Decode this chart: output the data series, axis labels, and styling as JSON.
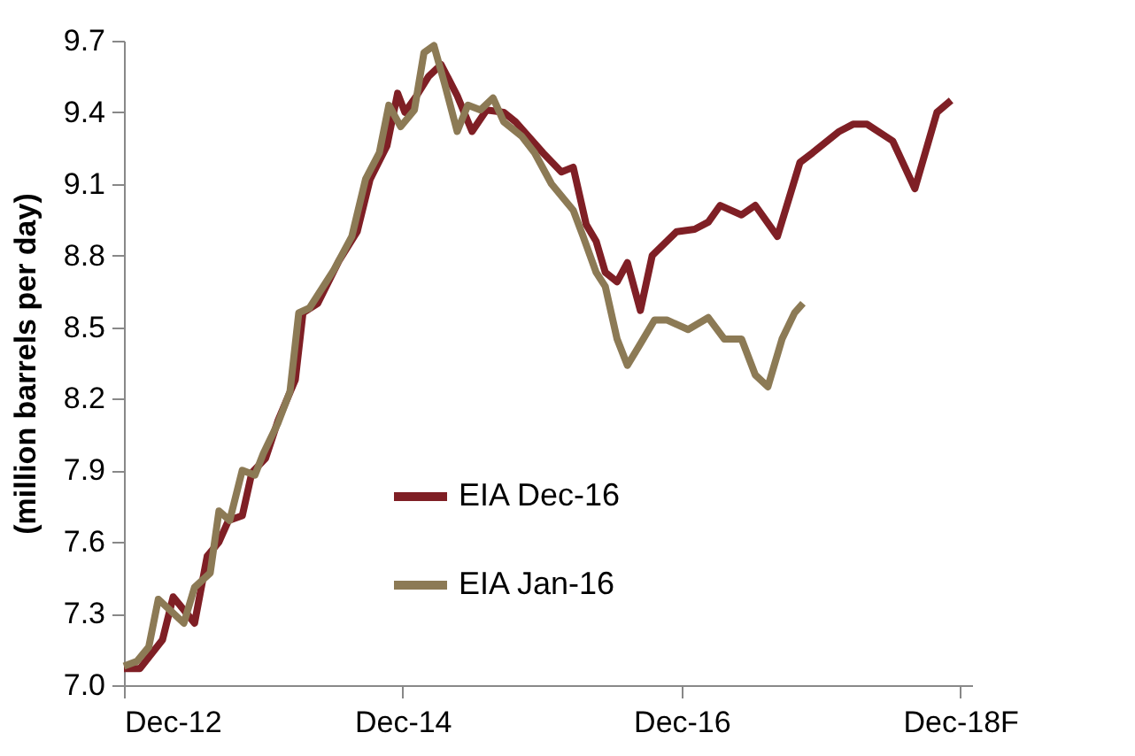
{
  "chart_data": {
    "type": "line",
    "ylabel": "(million barrels per day)",
    "xlim": [
      "2012-12-01",
      "2019-01-01"
    ],
    "xticks": [
      {
        "value": "2012-12-01",
        "label": "Dec-12"
      },
      {
        "value": "2014-12-01",
        "label": "Dec-14"
      },
      {
        "value": "2016-12-01",
        "label": "Dec-16"
      },
      {
        "value": "2018-12-01",
        "label": "Dec-18F"
      }
    ],
    "ylim": [
      7.0,
      9.7
    ],
    "yticks": [
      {
        "value": 7.0,
        "label": "7.0"
      },
      7.3,
      7.6,
      7.9,
      8.2,
      8.5,
      8.8,
      9.1,
      9.4,
      9.7
    ],
    "grid": false,
    "legend": "bottom",
    "marker": "none",
    "line_style": "solid",
    "series": [
      {
        "name": "EIA Dec-16",
        "color": "#7f1f25",
        "x": [
          "2012-12-01",
          "2013-01-12",
          "2013-03-12",
          "2013-04-09",
          "2013-06-04",
          "2013-07-07",
          "2013-08-07",
          "2013-09-01",
          "2013-10-07",
          "2013-11-01",
          "2013-12-07",
          "2014-01-09",
          "2014-02-23",
          "2014-03-15",
          "2014-04-23",
          "2014-06-18",
          "2014-08-04",
          "2014-09-07",
          "2014-10-21",
          "2014-11-18",
          "2014-12-07",
          "2015-01-07",
          "2015-02-07",
          "2015-03-12",
          "2015-04-23",
          "2015-06-01",
          "2015-07-09",
          "2015-08-23",
          "2015-09-23",
          "2015-12-04",
          "2016-01-21",
          "2016-02-21",
          "2016-03-26",
          "2016-04-21",
          "2016-05-15",
          "2016-06-15",
          "2016-07-12",
          "2016-08-15",
          "2016-09-15",
          "2016-11-18",
          "2017-01-04",
          "2017-02-09",
          "2017-03-12",
          "2017-05-07",
          "2017-06-12",
          "2017-08-09",
          "2017-10-07",
          "2017-11-09",
          "2018-01-18",
          "2018-02-23",
          "2018-04-01",
          "2018-06-07",
          "2018-08-04",
          "2018-10-01",
          "2018-11-07"
        ],
        "values": [
          7.07,
          7.07,
          7.19,
          7.37,
          7.26,
          7.54,
          7.6,
          7.69,
          7.71,
          7.89,
          7.95,
          8.11,
          8.28,
          8.56,
          8.6,
          8.78,
          8.9,
          9.12,
          9.26,
          9.48,
          9.4,
          9.47,
          9.55,
          9.6,
          9.47,
          9.32,
          9.41,
          9.4,
          9.36,
          9.23,
          9.15,
          9.17,
          8.93,
          8.86,
          8.73,
          8.69,
          8.77,
          8.57,
          8.8,
          8.9,
          8.91,
          8.94,
          9.01,
          8.97,
          9.01,
          8.88,
          9.19,
          9.23,
          9.32,
          9.35,
          9.35,
          9.28,
          9.08,
          9.4,
          9.45
        ]
      },
      {
        "name": "EIA Jan-16",
        "color": "#8c7a55",
        "x": [
          "2012-12-01",
          "2013-01-04",
          "2013-02-04",
          "2013-03-01",
          "2013-05-07",
          "2013-06-04",
          "2013-07-15",
          "2013-08-07",
          "2013-09-04",
          "2013-10-07",
          "2013-11-09",
          "2013-12-01",
          "2014-01-09",
          "2014-02-09",
          "2014-03-04",
          "2014-04-01",
          "2014-06-04",
          "2014-07-21",
          "2014-08-26",
          "2014-10-01",
          "2014-10-26",
          "2014-11-26",
          "2015-01-01",
          "2015-01-26",
          "2015-02-21",
          "2015-03-21",
          "2015-04-23",
          "2015-05-21",
          "2015-06-23",
          "2015-07-26",
          "2015-08-23",
          "2015-10-09",
          "2015-11-12",
          "2015-12-26",
          "2016-02-21",
          "2016-03-18",
          "2016-04-21",
          "2016-05-15",
          "2016-06-15",
          "2016-07-12",
          "2016-08-15",
          "2016-09-21",
          "2016-10-23",
          "2016-12-18",
          "2017-02-09",
          "2017-03-23",
          "2017-05-07",
          "2017-06-12",
          "2017-07-15",
          "2017-08-21",
          "2017-09-23",
          "2017-10-15"
        ],
        "values": [
          7.08,
          7.1,
          7.16,
          7.36,
          7.26,
          7.41,
          7.47,
          7.73,
          7.69,
          7.9,
          7.88,
          7.97,
          8.1,
          8.23,
          8.56,
          8.58,
          8.74,
          8.88,
          9.12,
          9.23,
          9.43,
          9.34,
          9.41,
          9.65,
          9.68,
          9.52,
          9.32,
          9.43,
          9.41,
          9.46,
          9.36,
          9.3,
          9.23,
          9.1,
          8.99,
          8.88,
          8.73,
          8.67,
          8.45,
          8.34,
          8.43,
          8.53,
          8.53,
          8.49,
          8.54,
          8.45,
          8.45,
          8.3,
          8.25,
          8.45,
          8.56,
          8.6
        ]
      }
    ]
  }
}
